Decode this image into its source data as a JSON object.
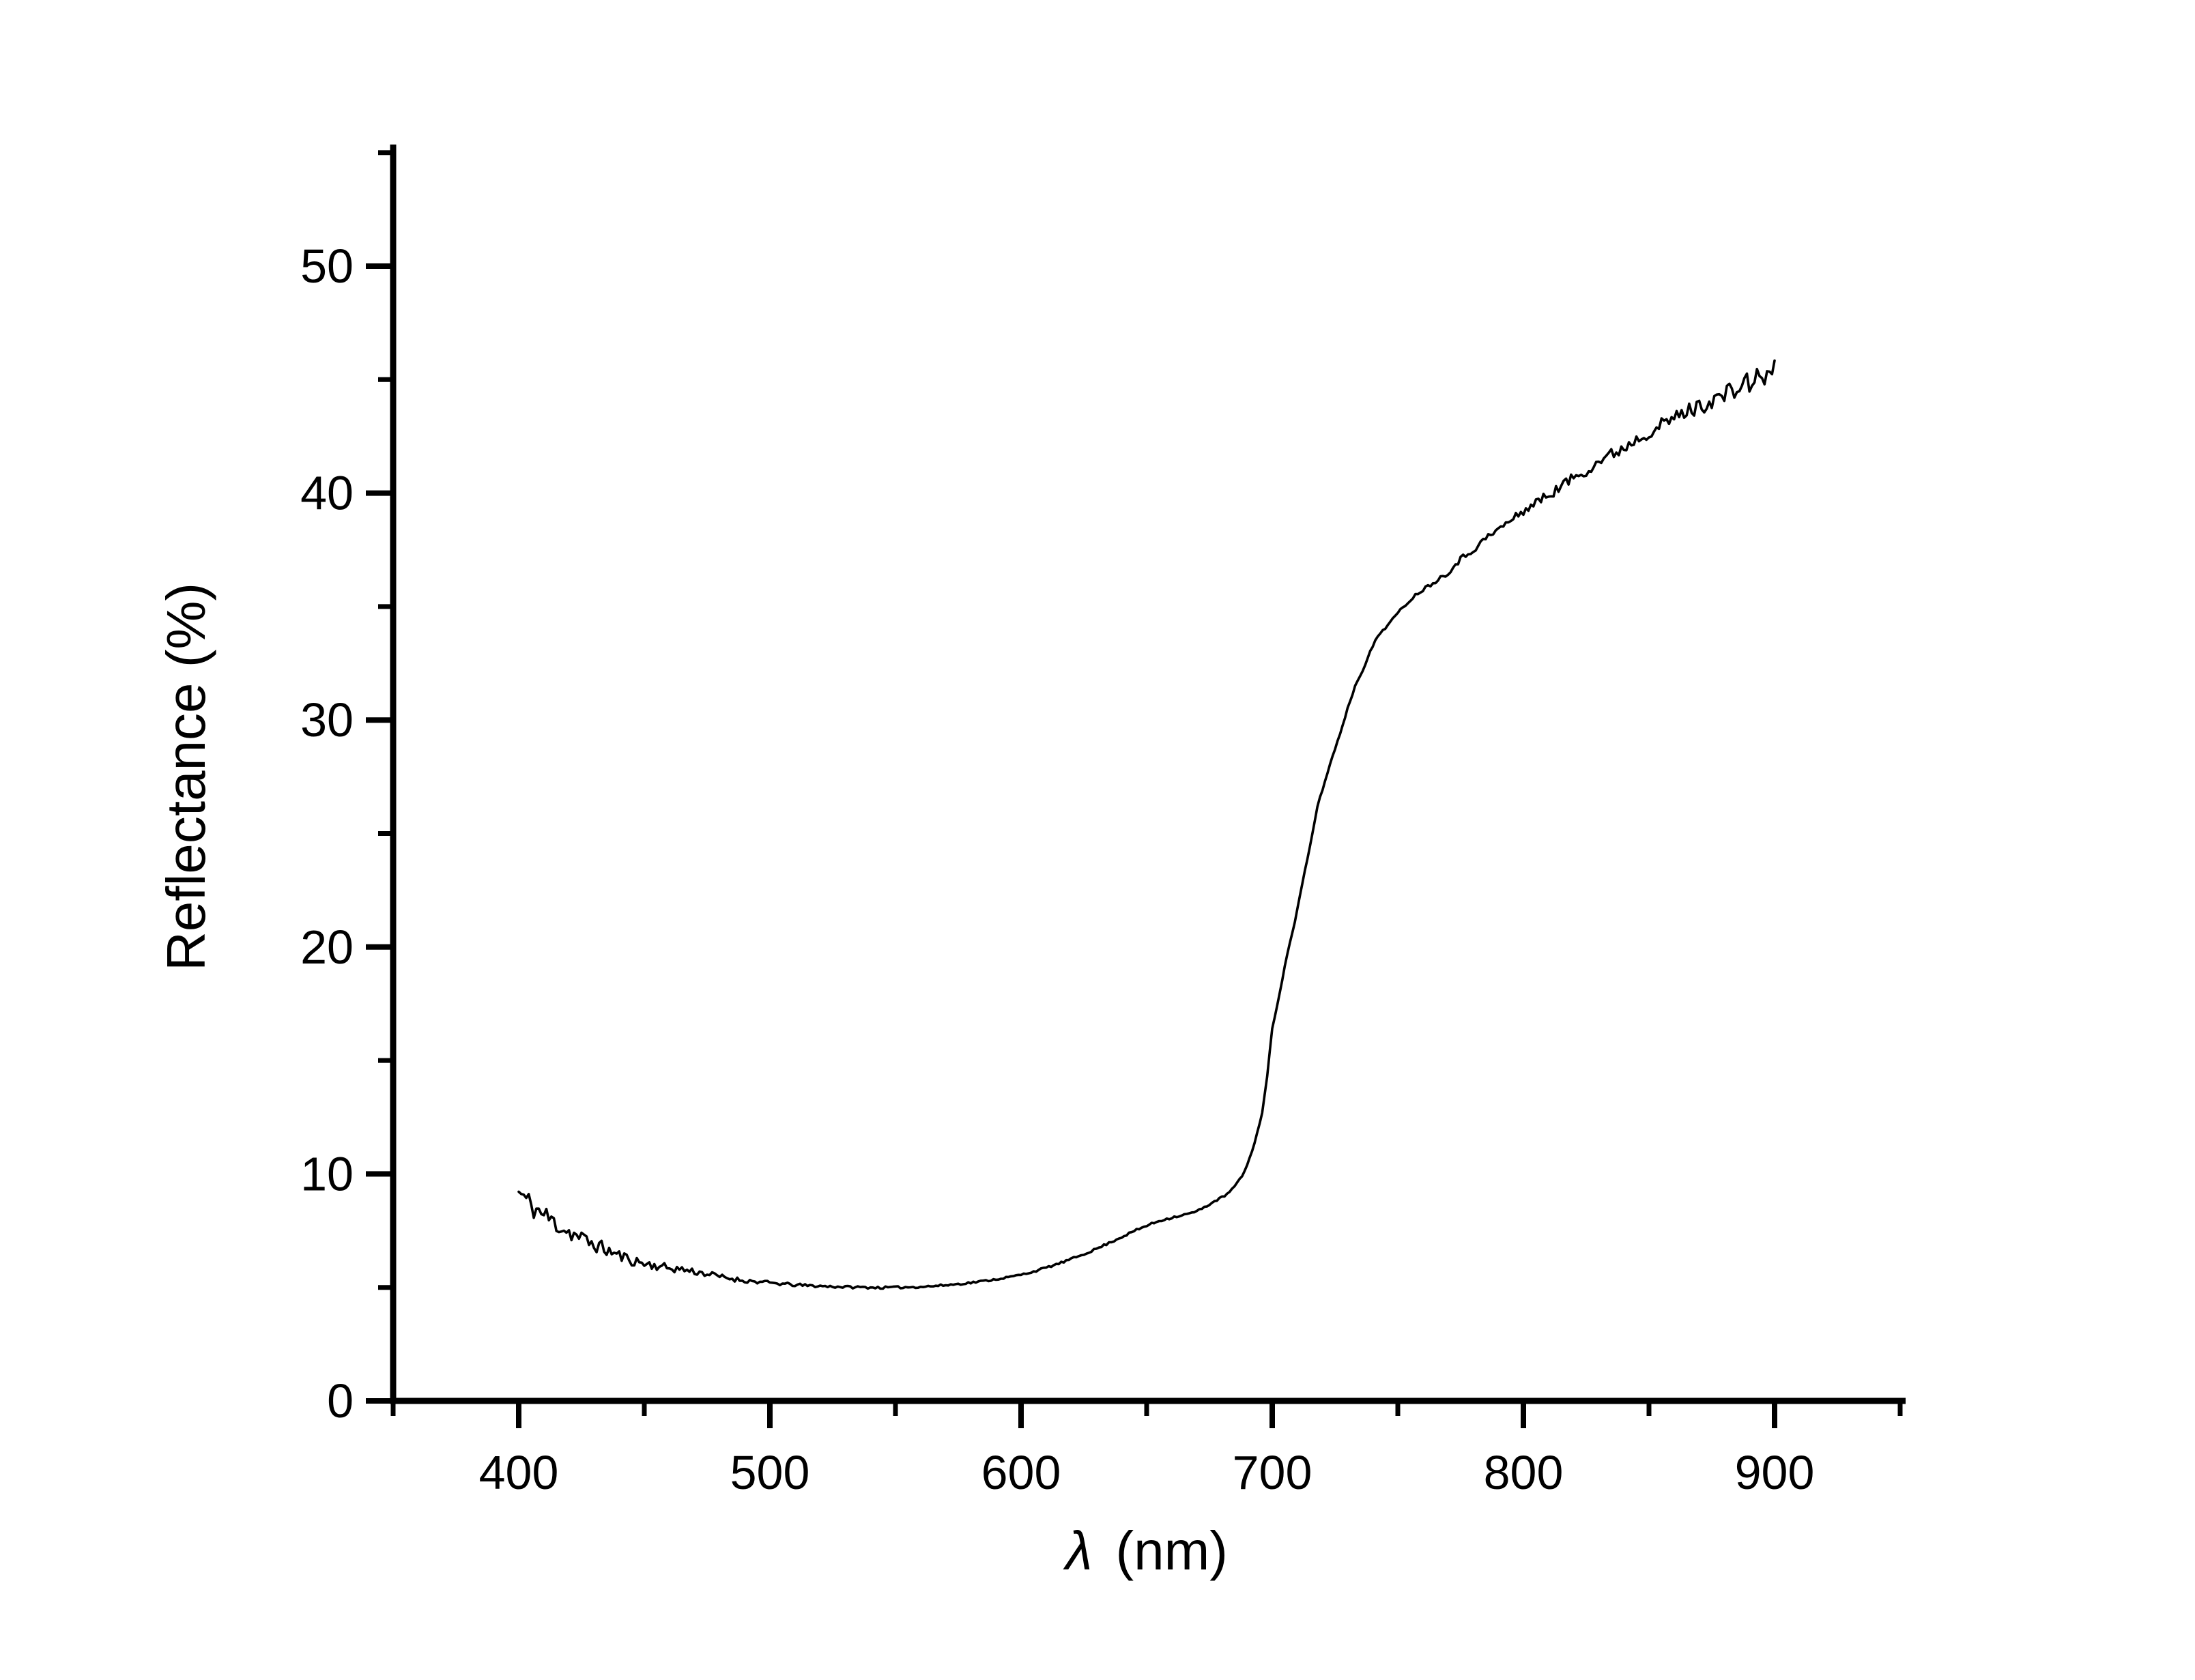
{
  "page": {
    "background": "#ffffff"
  },
  "chart_data": {
    "type": "line",
    "title": "",
    "xlabel_symbol": "λ",
    "xlabel_unit": "(nm)",
    "ylabel": "Reflectance (%)",
    "xlim": [
      350,
      950
    ],
    "ylim": [
      0,
      55
    ],
    "x_ticks_major": [
      400,
      500,
      600,
      700,
      800,
      900
    ],
    "x_ticks_minor": [
      350,
      450,
      550,
      650,
      750,
      850,
      950
    ],
    "y_ticks_major": [
      0,
      10,
      20,
      30,
      40,
      50
    ],
    "y_ticks_minor": [
      5,
      15,
      25,
      35,
      45,
      55
    ],
    "grid": false,
    "legend": false,
    "axis_color": "#000000",
    "line_color": "#000000",
    "series": [
      {
        "name": "reflectance-spectrum",
        "x": [
          400,
          405,
          410,
          415,
          420,
          425,
          430,
          435,
          440,
          445,
          450,
          455,
          460,
          465,
          470,
          475,
          480,
          485,
          490,
          495,
          500,
          505,
          510,
          515,
          520,
          525,
          530,
          535,
          540,
          545,
          550,
          555,
          560,
          565,
          570,
          575,
          580,
          585,
          590,
          595,
          600,
          605,
          610,
          615,
          620,
          625,
          630,
          635,
          640,
          645,
          650,
          655,
          660,
          665,
          670,
          674,
          678,
          682,
          685,
          688,
          690,
          692,
          694,
          696,
          698,
          700,
          703,
          706,
          709,
          712,
          715,
          718,
          721,
          724,
          727,
          730,
          733,
          736,
          739,
          742,
          746,
          750,
          754,
          758,
          762,
          766,
          770,
          775,
          780,
          785,
          790,
          795,
          800,
          805,
          810,
          815,
          820,
          825,
          830,
          835,
          840,
          845,
          850,
          855,
          860,
          865,
          870,
          875,
          880,
          885,
          890,
          895,
          900
        ],
        "y": [
          9.2,
          8.6,
          8.2,
          7.8,
          7.45,
          7.15,
          6.9,
          6.65,
          6.4,
          6.2,
          6.05,
          5.95,
          5.85,
          5.8,
          5.7,
          5.6,
          5.48,
          5.38,
          5.3,
          5.25,
          5.2,
          5.15,
          5.11,
          5.08,
          5.06,
          5.04,
          5.02,
          5.01,
          5.0,
          4.99,
          5.0,
          5.01,
          5.03,
          5.06,
          5.1,
          5.15,
          5.21,
          5.28,
          5.36,
          5.45,
          5.56,
          5.7,
          5.87,
          6.05,
          6.25,
          6.47,
          6.7,
          6.96,
          7.22,
          7.48,
          7.72,
          7.93,
          8.08,
          8.2,
          8.35,
          8.6,
          8.85,
          9.1,
          9.45,
          9.9,
          10.4,
          11.0,
          11.8,
          12.7,
          14.3,
          16.4,
          18.0,
          19.7,
          21.1,
          22.8,
          24.4,
          26.2,
          27.3,
          28.4,
          29.4,
          30.5,
          31.5,
          32.2,
          33.0,
          33.7,
          34.2,
          34.7,
          35.2,
          35.6,
          35.9,
          36.2,
          36.5,
          37.1,
          37.5,
          38.0,
          38.4,
          38.8,
          39.2,
          39.6,
          39.9,
          40.3,
          40.7,
          41.0,
          41.4,
          41.7,
          42.0,
          42.4,
          42.7,
          43.0,
          43.3,
          43.6,
          43.8,
          44.1,
          44.3,
          44.6,
          44.9,
          45.1,
          45.4
        ]
      }
    ],
    "noise": {
      "seed": 11,
      "step_nm": 1,
      "envelope_x": [
        400,
        410,
        420,
        430,
        440,
        450,
        460,
        470,
        480,
        490,
        500,
        520,
        550,
        600,
        650,
        680,
        700,
        740,
        760,
        780,
        800,
        820,
        840,
        860,
        875,
        890,
        900
      ],
      "envelope_amp": [
        0.6,
        0.5,
        0.42,
        0.34,
        0.27,
        0.21,
        0.18,
        0.16,
        0.12,
        0.1,
        0.08,
        0.06,
        0.05,
        0.04,
        0.05,
        0.04,
        0.03,
        0.05,
        0.08,
        0.14,
        0.18,
        0.24,
        0.28,
        0.32,
        0.38,
        0.48,
        0.55
      ]
    }
  }
}
